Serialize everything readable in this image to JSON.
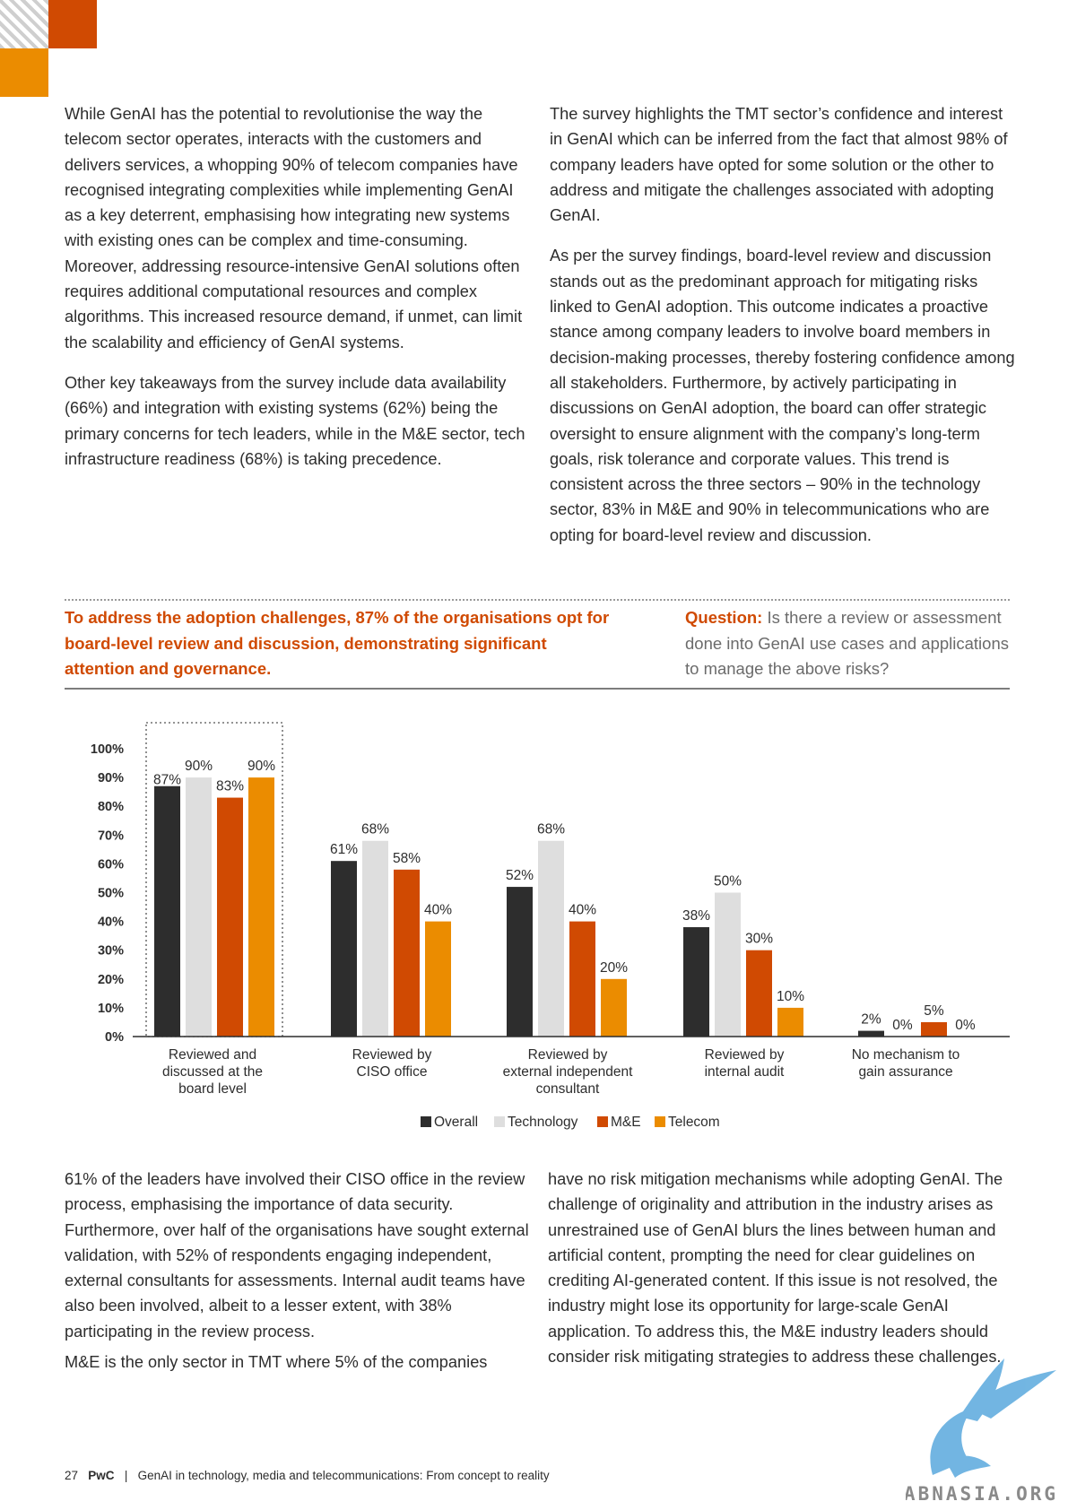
{
  "body": {
    "left_top": [
      "While GenAI has the potential to revolutionise the way the telecom sector operates, interacts with the customers and delivers services, a whopping 90% of telecom companies have recognised integrating complexities while implementing GenAI as a key deterrent, emphasising how integrating new systems with existing ones can be complex and time-consuming. Moreover, addressing resource-intensive GenAI solutions often requires additional computational resources and complex algorithms. This increased resource demand, if unmet, can limit the scalability and efficiency of GenAI systems.",
      "Other key takeaways from the survey include data availability (66%) and integration with existing systems (62%) being the primary concerns for tech leaders, while in the M&E sector, tech infrastructure readiness (68%) is taking precedence."
    ],
    "right_top": [
      "The survey highlights the TMT sector’s confidence and interest in GenAI which can be inferred from the fact that almost 98% of company leaders have opted for some solution or the other to address and mitigate the challenges associated with adopting GenAI.",
      "As per the survey findings, board-level review and discussion stands out as the predominant approach for mitigating risks linked to GenAI adoption. This outcome indicates a proactive stance among company leaders to involve board members in decision-making processes, thereby fostering confidence among all stakeholders. Furthermore, by actively participating in discussions on GenAI adoption, the board can offer strategic oversight to ensure alignment with the company’s long-term goals, risk tolerance and corporate values. This trend is consistent across the three sectors – 90% in the technology sector, 83% in M&E and 90% in telecommunications who are opting for board-level review and discussion."
    ],
    "left_bottom": [
      "61% of the leaders have involved their CISO office in the review process, emphasising the importance of data security. Furthermore, over half of the organisations have sought external validation, with 52% of respondents engaging independent, external consultants for assessments. Internal audit teams have also been involved, albeit to a lesser extent, with 38% participating in the review process.",
      "M&E is the only sector in TMT where 5% of the companies"
    ],
    "right_bottom": [
      "have no risk mitigation mechanisms while adopting GenAI. The challenge of originality and attribution in the industry arises as unrestrained use of GenAI blurs the lines between human and artificial content, prompting the need for clear guidelines on crediting AI-generated content. If this issue is not resolved, the industry might lose its opportunity for large-scale GenAI application. To address this, the M&E industry leaders should consider risk mitigating strategies to address these challenges."
    ]
  },
  "callout": {
    "headline": "To address the adoption challenges, 87% of the organisations opt for board-level review and discussion, demonstrating significant attention and governance.",
    "question_label": "Question:",
    "question_text": " Is there a review or assessment done into GenAI use cases and applications to manage the above risks?"
  },
  "chart_data": {
    "type": "bar",
    "categories": [
      [
        "Reviewed and",
        "discussed at the",
        "board level"
      ],
      [
        "Reviewed by",
        "CISO office"
      ],
      [
        "Reviewed by",
        "external independent",
        "consultant"
      ],
      [
        "Reviewed by",
        "internal audit"
      ],
      [
        "No mechanism to",
        "gain assurance"
      ]
    ],
    "series": [
      {
        "name": "Overall",
        "values": [
          87,
          61,
          52,
          38,
          2
        ]
      },
      {
        "name": "Technology",
        "values": [
          90,
          68,
          68,
          50,
          0
        ]
      },
      {
        "name": "M&E",
        "values": [
          83,
          58,
          40,
          30,
          5
        ]
      },
      {
        "name": "Telecom",
        "values": [
          90,
          40,
          20,
          10,
          0
        ]
      }
    ],
    "value_suffix": "%",
    "ylim": [
      0,
      100
    ],
    "yticks": [
      "0%",
      "10%",
      "20%",
      "30%",
      "40%",
      "50%",
      "60%",
      "70%",
      "80%",
      "90%",
      "100%"
    ],
    "colors": {
      "Overall": "#2d2d2d",
      "Technology": "#dedede",
      "M&E": "#d04a02",
      "Telecom": "#eb8c00"
    },
    "highlight_category": 0,
    "legend_position": "bottom-center",
    "grid": false
  },
  "footer": {
    "page": "27",
    "brand": "PwC",
    "separator": "|",
    "title": "GenAI in technology, media and telecommunications: From concept to reality"
  },
  "watermark": {
    "text": "ABNASIA.ORG"
  }
}
